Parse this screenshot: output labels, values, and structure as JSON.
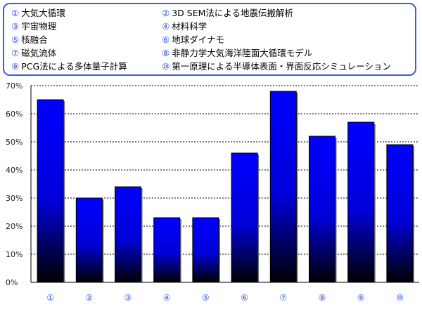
{
  "legend": {
    "items": [
      {
        "num": "①",
        "label": "大気大循環"
      },
      {
        "num": "②",
        "label": "3D SEM法による地震伝搬解析"
      },
      {
        "num": "③",
        "label": "宇宙物理"
      },
      {
        "num": "④",
        "label": "材料科学"
      },
      {
        "num": "⑤",
        "label": "核融合"
      },
      {
        "num": "⑥",
        "label": "地球ダイナモ"
      },
      {
        "num": "⑦",
        "label": "磁気流体"
      },
      {
        "num": "⑧",
        "label": "非静力学大気海洋陸面大循環モデル"
      },
      {
        "num": "⑨",
        "label": "PCG法による多体量子計算"
      },
      {
        "num": "⑩",
        "label": "第一原理による半導体表面・界面反応シミュレーション"
      }
    ]
  },
  "colors": {
    "legend_border": "#3a5fd8",
    "bar_top": "#0000ff",
    "bar_bottom": "#000000",
    "category_label": "#2b4fe0"
  },
  "chart_data": {
    "type": "bar",
    "categories": [
      "①",
      "②",
      "③",
      "④",
      "⑤",
      "⑥",
      "⑦",
      "⑧",
      "⑨",
      "⑩"
    ],
    "values": [
      65,
      30,
      34,
      23,
      23,
      46,
      68,
      52,
      57,
      49
    ],
    "ylim": [
      0,
      70
    ],
    "yticks": [
      "0%",
      "10%",
      "20%",
      "30%",
      "40%",
      "50%",
      "60%",
      "70%"
    ],
    "grid": true,
    "title": "",
    "xlabel": "",
    "ylabel": ""
  }
}
